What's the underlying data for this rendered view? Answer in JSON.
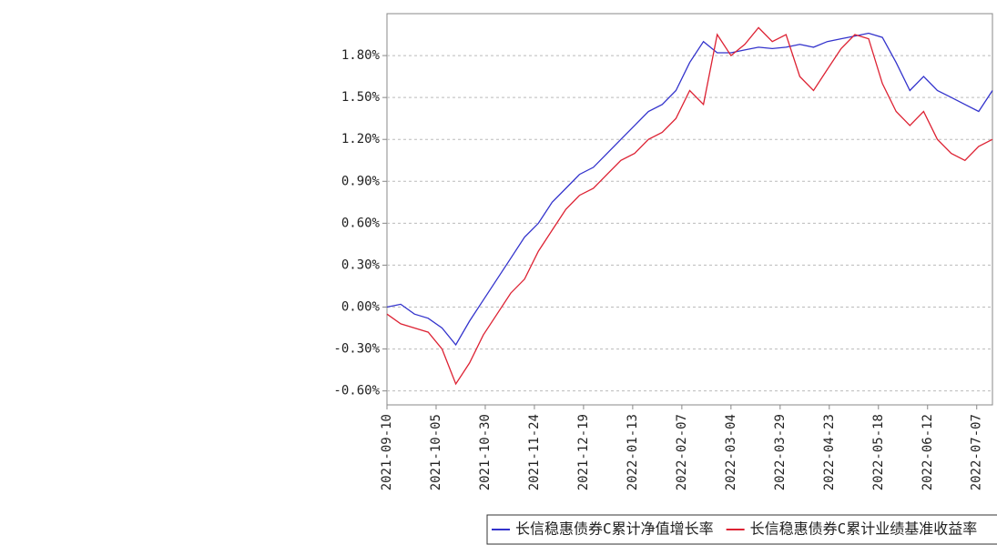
{
  "chart_data": {
    "type": "line",
    "x": [
      "2021-09-10",
      "2021-09-17",
      "2021-09-24",
      "2021-10-01",
      "2021-10-08",
      "2021-10-15",
      "2021-10-22",
      "2021-10-29",
      "2021-11-05",
      "2021-11-12",
      "2021-11-19",
      "2021-11-26",
      "2021-12-03",
      "2021-12-10",
      "2021-12-17",
      "2021-12-24",
      "2021-12-31",
      "2022-01-07",
      "2022-01-14",
      "2022-01-21",
      "2022-01-28",
      "2022-02-04",
      "2022-02-11",
      "2022-02-18",
      "2022-02-25",
      "2022-03-04",
      "2022-03-11",
      "2022-03-18",
      "2022-03-25",
      "2022-04-01",
      "2022-04-08",
      "2022-04-15",
      "2022-04-22",
      "2022-04-29",
      "2022-05-06",
      "2022-05-13",
      "2022-05-20",
      "2022-05-27",
      "2022-06-03",
      "2022-06-10",
      "2022-06-17",
      "2022-06-24",
      "2022-07-01",
      "2022-07-08",
      "2022-07-15"
    ],
    "series": [
      {
        "name": "长信稳惠债券C累计净值增长率",
        "color": "#3333cc",
        "values": [
          0.0,
          0.02,
          -0.05,
          -0.08,
          -0.15,
          -0.27,
          -0.1,
          0.05,
          0.2,
          0.35,
          0.5,
          0.6,
          0.75,
          0.85,
          0.95,
          1.0,
          1.1,
          1.2,
          1.3,
          1.4,
          1.45,
          1.55,
          1.75,
          1.9,
          1.82,
          1.82,
          1.84,
          1.86,
          1.85,
          1.86,
          1.88,
          1.86,
          1.9,
          1.92,
          1.94,
          1.96,
          1.93,
          1.75,
          1.55,
          1.65,
          1.55,
          1.5,
          1.45,
          1.4,
          1.55
        ]
      },
      {
        "name": "长信稳惠债券C累计业绩基准收益率",
        "color": "#dd2233",
        "values": [
          -0.05,
          -0.12,
          -0.15,
          -0.18,
          -0.3,
          -0.55,
          -0.4,
          -0.2,
          -0.05,
          0.1,
          0.2,
          0.4,
          0.55,
          0.7,
          0.8,
          0.85,
          0.95,
          1.05,
          1.1,
          1.2,
          1.25,
          1.35,
          1.55,
          1.45,
          1.95,
          1.8,
          1.88,
          2.0,
          1.9,
          1.95,
          1.65,
          1.55,
          1.7,
          1.85,
          1.95,
          1.92,
          1.6,
          1.4,
          1.3,
          1.4,
          1.2,
          1.1,
          1.05,
          1.15,
          1.2
        ]
      }
    ],
    "xlim": [
      "2021-09-10",
      "2022-07-15"
    ],
    "xticks": [
      "2021-09-10",
      "2021-10-05",
      "2021-10-30",
      "2021-11-24",
      "2021-12-19",
      "2022-01-13",
      "2022-02-07",
      "2022-03-04",
      "2022-03-29",
      "2022-04-23",
      "2022-05-18",
      "2022-06-12",
      "2022-07-07"
    ],
    "ylim": [
      -0.7,
      2.1
    ],
    "yticks": [
      {
        "value": -0.6,
        "label": "-0.60%"
      },
      {
        "value": -0.3,
        "label": "-0.30%"
      },
      {
        "value": 0,
        "label": "0.00%"
      },
      {
        "value": 0.3,
        "label": "0.30%"
      },
      {
        "value": 0.6,
        "label": "0.60%"
      },
      {
        "value": 0.9,
        "label": "0.90%"
      },
      {
        "value": 1.2,
        "label": "1.20%"
      },
      {
        "value": 1.5,
        "label": "1.50%"
      },
      {
        "value": 1.8,
        "label": "1.80%"
      }
    ],
    "grid": true
  }
}
